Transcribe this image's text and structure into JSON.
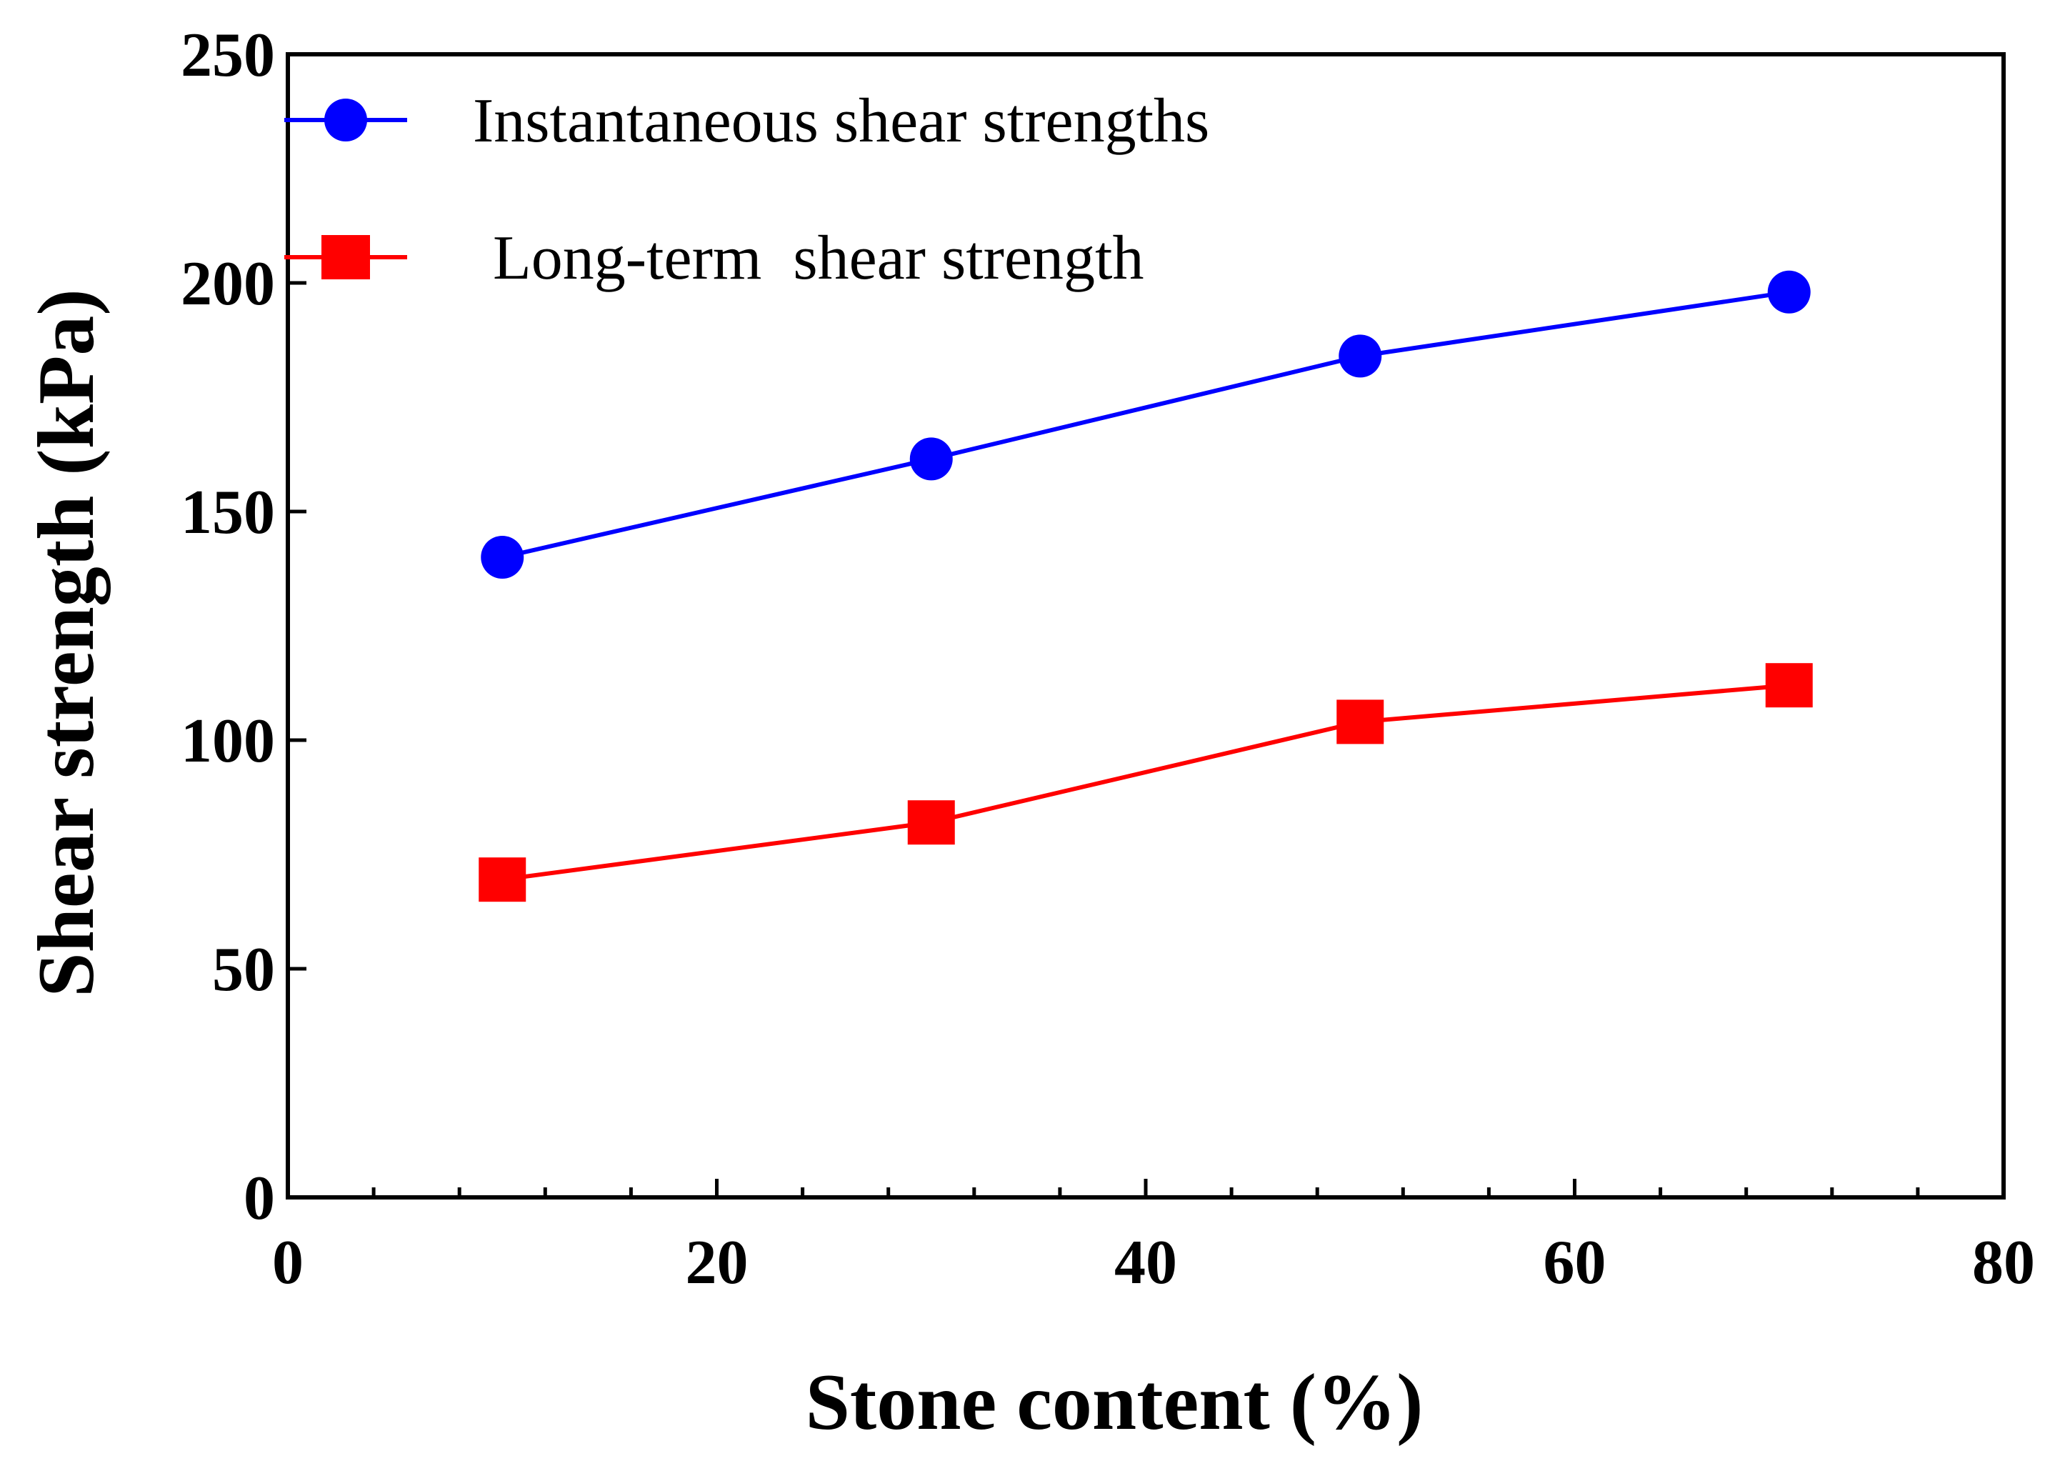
{
  "chart_data": {
    "type": "line",
    "title": "",
    "xlabel": "Stone content (%)",
    "ylabel": "Shear strength (kPa)",
    "xlim": [
      0,
      80
    ],
    "ylim": [
      0,
      250
    ],
    "xticks": [
      0,
      20,
      40,
      60,
      80
    ],
    "xtick_labels": [
      "0",
      "20",
      "40",
      "60",
      "80"
    ],
    "yticks": [
      0,
      50,
      100,
      150,
      200,
      250
    ],
    "ytick_labels": [
      "0",
      "50",
      "100",
      "150",
      "200",
      "250"
    ],
    "x_minor_step": 4,
    "grid": false,
    "legend_position": "top-left",
    "series": [
      {
        "name": "Instantaneous shear strengths",
        "color": "#0000ff",
        "marker": "circle",
        "x": [
          10,
          30,
          50,
          70
        ],
        "y": [
          140,
          161.5,
          184,
          198
        ]
      },
      {
        "name": "Long-term  shear strength",
        "color": "#ff0000",
        "marker": "square",
        "x": [
          10,
          30,
          50,
          70
        ],
        "y": [
          69.5,
          82,
          104,
          112
        ]
      }
    ]
  }
}
